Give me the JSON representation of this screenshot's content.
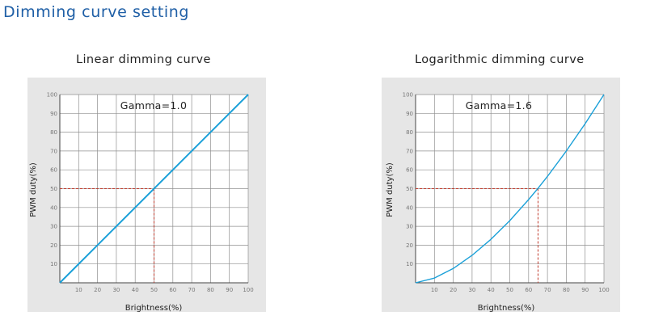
{
  "page": {
    "heading": "Dimming curve setting"
  },
  "chart_data": [
    {
      "type": "line",
      "title": "Linear dimming curve",
      "annotation": "Gamma=1.0",
      "gamma": 1.0,
      "xlabel": "Brightness(%)",
      "ylabel": "PWM duty(%)",
      "xlim": [
        0,
        100
      ],
      "ylim": [
        0,
        100
      ],
      "x_ticks": [
        10,
        20,
        30,
        40,
        50,
        60,
        70,
        80,
        90,
        100
      ],
      "y_ticks": [
        10,
        20,
        30,
        40,
        50,
        60,
        70,
        80,
        90,
        100
      ],
      "grid": true,
      "series": [
        {
          "x": [
            0,
            100
          ],
          "y": [
            0,
            100
          ]
        }
      ],
      "reference_point": {
        "x": 50,
        "y": 50
      },
      "colors": {
        "curve": "#1aa0d8",
        "reference": "#c0392b",
        "plot_bg": "#e6e6e6"
      }
    },
    {
      "type": "line",
      "title": "Logarithmic dimming curve",
      "annotation": "Gamma=1.6",
      "gamma": 1.6,
      "xlabel": "Brightness(%)",
      "ylabel": "PWM duty(%)",
      "xlim": [
        0,
        100
      ],
      "ylim": [
        0,
        100
      ],
      "x_ticks": [
        10,
        20,
        30,
        40,
        50,
        60,
        70,
        80,
        90,
        100
      ],
      "y_ticks": [
        10,
        20,
        30,
        40,
        50,
        60,
        70,
        80,
        90,
        100
      ],
      "grid": true,
      "series": [
        {
          "x": [
            0,
            10,
            20,
            30,
            40,
            50,
            60,
            65,
            70,
            80,
            90,
            100
          ],
          "y": [
            0,
            2.5,
            7.6,
            14.6,
            23.1,
            33.0,
            44.2,
            50.2,
            56.5,
            70.0,
            84.5,
            100
          ]
        }
      ],
      "reference_point": {
        "x": 65,
        "y": 50
      },
      "colors": {
        "curve": "#1aa0d8",
        "reference": "#c0392b",
        "plot_bg": "#e6e6e6"
      }
    }
  ]
}
